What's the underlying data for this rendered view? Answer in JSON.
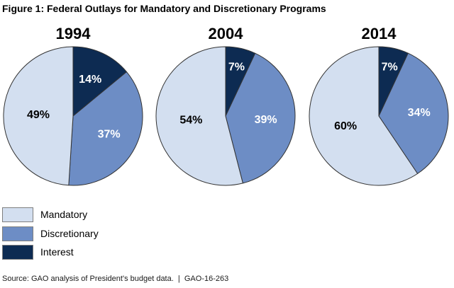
{
  "title": "Figure 1: Federal Outlays for Mandatory and Discretionary Programs",
  "source_line": "Source: GAO analysis of President's budget data.  |  GAO-16-263",
  "chart_data": {
    "type": "pie",
    "title": "Figure 1: Federal Outlays for Mandatory and Discretionary Programs",
    "unit": "percent of federal outlays",
    "categories": [
      "Mandatory",
      "Discretionary",
      "Interest"
    ],
    "category_colors": [
      "#D3DFF0",
      "#6D8DC5",
      "#0D2B52"
    ],
    "label_text_colors": [
      "#000000",
      "#FFFFFF",
      "#FFFFFF"
    ],
    "outline_color": "#333333",
    "clockwise_from_top_order": [
      "Interest",
      "Discretionary",
      "Mandatory"
    ],
    "legend_position": "bottom-left",
    "pies": [
      {
        "title": "1994",
        "values": [
          49,
          37,
          14
        ],
        "labels": [
          "49%",
          "37%",
          "14%"
        ]
      },
      {
        "title": "2004",
        "values": [
          54,
          39,
          7
        ],
        "labels": [
          "54%",
          "39%",
          "7%"
        ]
      },
      {
        "title": "2014",
        "values": [
          60,
          34,
          7
        ],
        "labels": [
          "60%",
          "34%",
          "7%"
        ]
      }
    ]
  },
  "legend": {
    "items": [
      "Mandatory",
      "Discretionary",
      "Interest"
    ]
  }
}
